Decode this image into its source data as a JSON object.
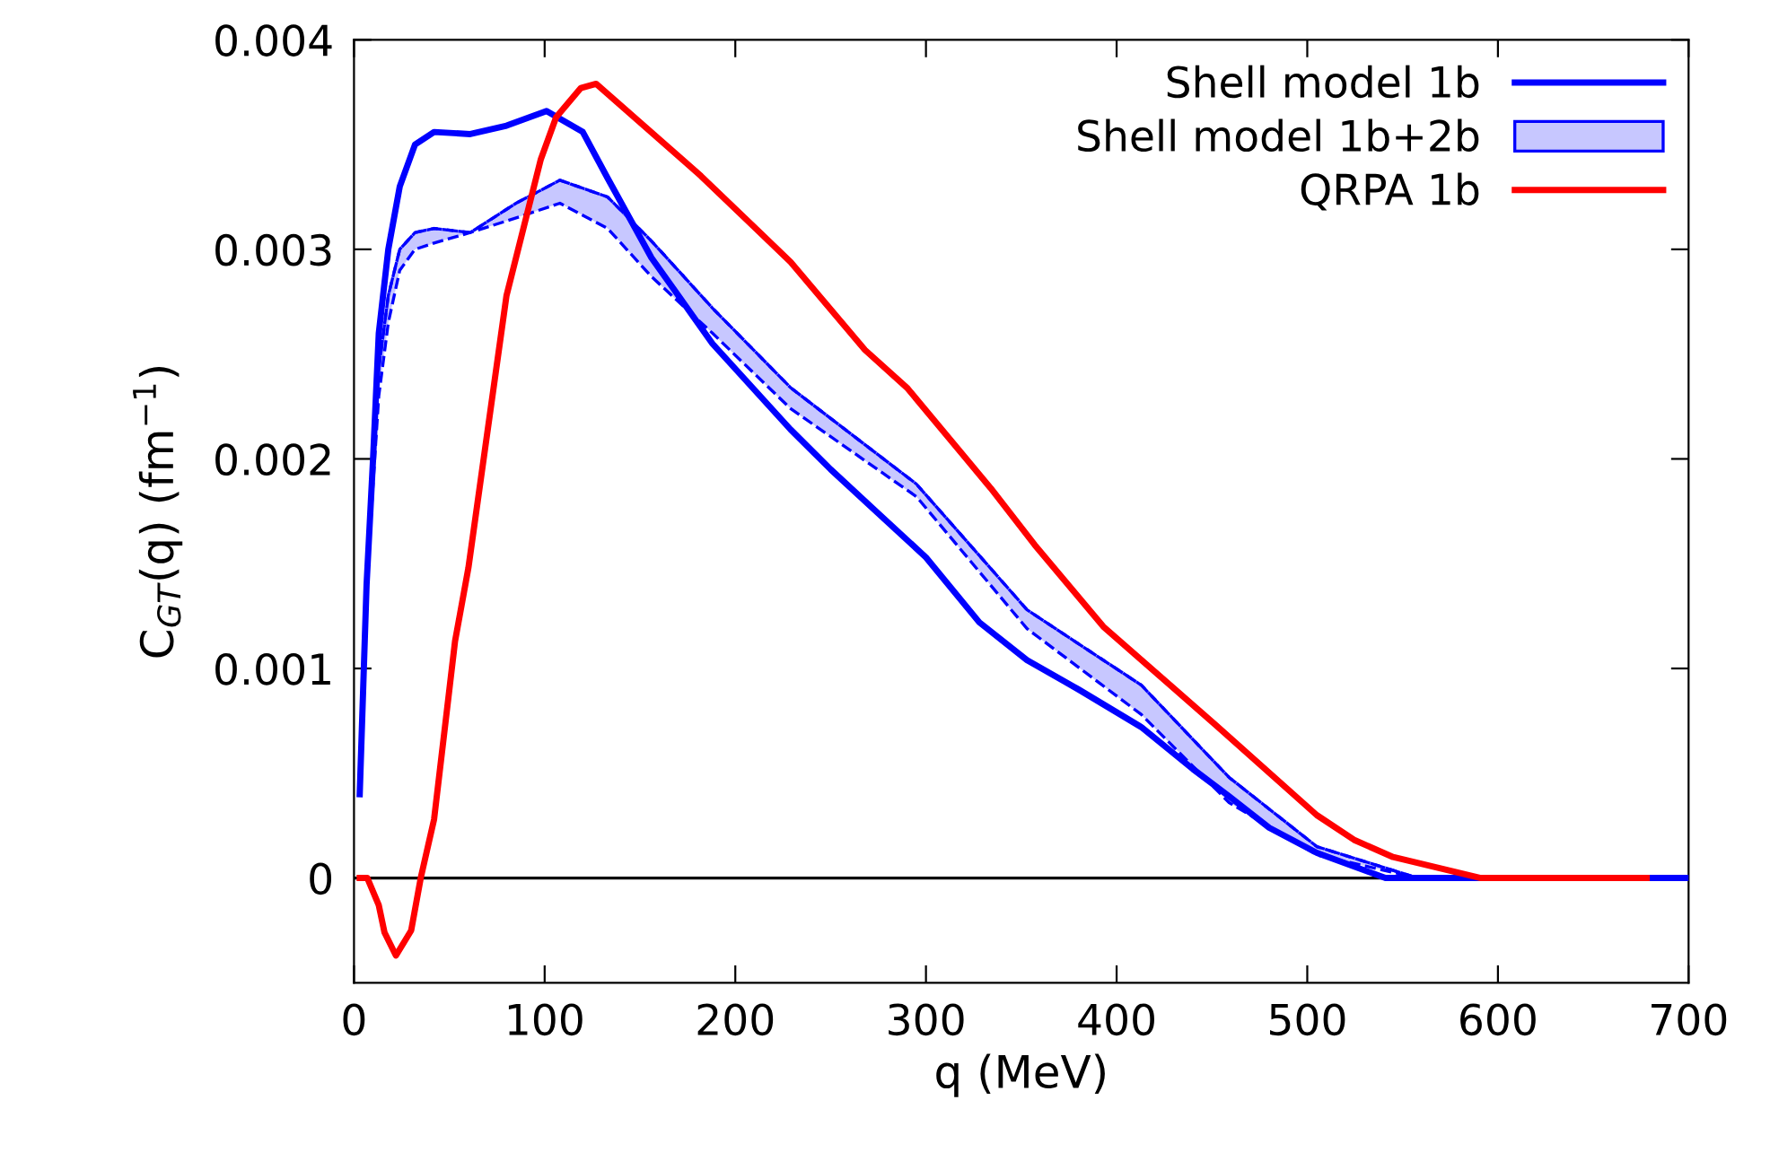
{
  "chart_data": {
    "type": "line",
    "xlabel": "q (MeV)",
    "ylabel": "C$_{GT}$(q) (fm$^{−1}$)",
    "xlim": [
      0,
      700
    ],
    "ylim": [
      -0.0005,
      0.004
    ],
    "xticks": [
      0,
      100,
      200,
      300,
      400,
      500,
      600,
      700
    ],
    "yticks": [
      0,
      0.001,
      0.002,
      0.003,
      0.004
    ],
    "legend": "top right",
    "grid": false,
    "line_style": "solid",
    "ref_lines": [
      {
        "axis": "y",
        "value": 0,
        "color": "#000000"
      }
    ],
    "series": [
      {
        "name": "Shell model 1b",
        "color": "#0000ff",
        "x": [
          3,
          6.6,
          10,
          13,
          18,
          24,
          32,
          42,
          61,
          80,
          101,
          120,
          133,
          156,
          188,
          229,
          250,
          275,
          300,
          328,
          353,
          380,
          413,
          440,
          459,
          480,
          505,
          541,
          600,
          700
        ],
        "values": [
          0.0004,
          0.0014,
          0.002,
          0.0026,
          0.003,
          0.0033,
          0.0035,
          0.00356,
          0.00355,
          0.00359,
          0.00366,
          0.00356,
          0.00334,
          0.00296,
          0.00255,
          0.00214,
          0.00195,
          0.00174,
          0.00153,
          0.00122,
          0.00104,
          0.0009,
          0.00072,
          0.00052,
          0.00039,
          0.00024,
          0.00012,
          0,
          0,
          0
        ]
      },
      {
        "name": "Shell model 1b+2b",
        "type": "line",
        "color": "#0000ff",
        "line_style": "dashed",
        "x": [
          3,
          6.6,
          13,
          18,
          24,
          32,
          42,
          61,
          85,
          108,
          133,
          156,
          188,
          229,
          295,
          353,
          413,
          459,
          505,
          558,
          600,
          700
        ],
        "lower": [
          0.0004,
          0.0014,
          0.0023,
          0.00265,
          0.0029,
          0.003,
          0.00303,
          0.00308,
          0.00315,
          0.00322,
          0.0031,
          0.00287,
          0.0026,
          0.00224,
          0.00182,
          0.00119,
          0.00078,
          0.00036,
          0.00011,
          0,
          0,
          0
        ],
        "upper": [
          0.0004,
          0.0014,
          0.00243,
          0.00278,
          0.003,
          0.00308,
          0.0031,
          0.00308,
          0.00322,
          0.00333,
          0.00325,
          0.00304,
          0.00272,
          0.00234,
          0.00188,
          0.00128,
          0.00092,
          0.00048,
          0.00015,
          0,
          0,
          0
        ],
        "values": [
          0.0004,
          0.0014,
          0.00243,
          0.00278,
          0.003,
          0.00308,
          0.0031,
          0.00308,
          0.00322,
          0.00333,
          0.00325,
          0.00304,
          0.00272,
          0.00234,
          0.00188,
          0.00128,
          0.00092,
          0.00048,
          0.00015,
          0,
          0,
          0
        ]
      },
      {
        "name": "QRPA 1b",
        "color": "#ff0000",
        "x": [
          3,
          7,
          13,
          16,
          22,
          30,
          35,
          42,
          53,
          60,
          80,
          98,
          106,
          119,
          127,
          182,
          229,
          268,
          290,
          334,
          357,
          393,
          452,
          505,
          525,
          545,
          591,
          624,
          678
        ],
        "values": [
          0,
          0,
          -0.00013,
          -0.00026,
          -0.00037,
          -0.00025,
          0,
          0.00028,
          0.00113,
          0.00148,
          0.00278,
          0.00343,
          0.00363,
          0.00377,
          0.00379,
          0.00335,
          0.00294,
          0.00252,
          0.00234,
          0.00186,
          0.00159,
          0.0012,
          0.00073,
          0.0003,
          0.00018,
          0.0001,
          0,
          0,
          0
        ]
      }
    ]
  }
}
